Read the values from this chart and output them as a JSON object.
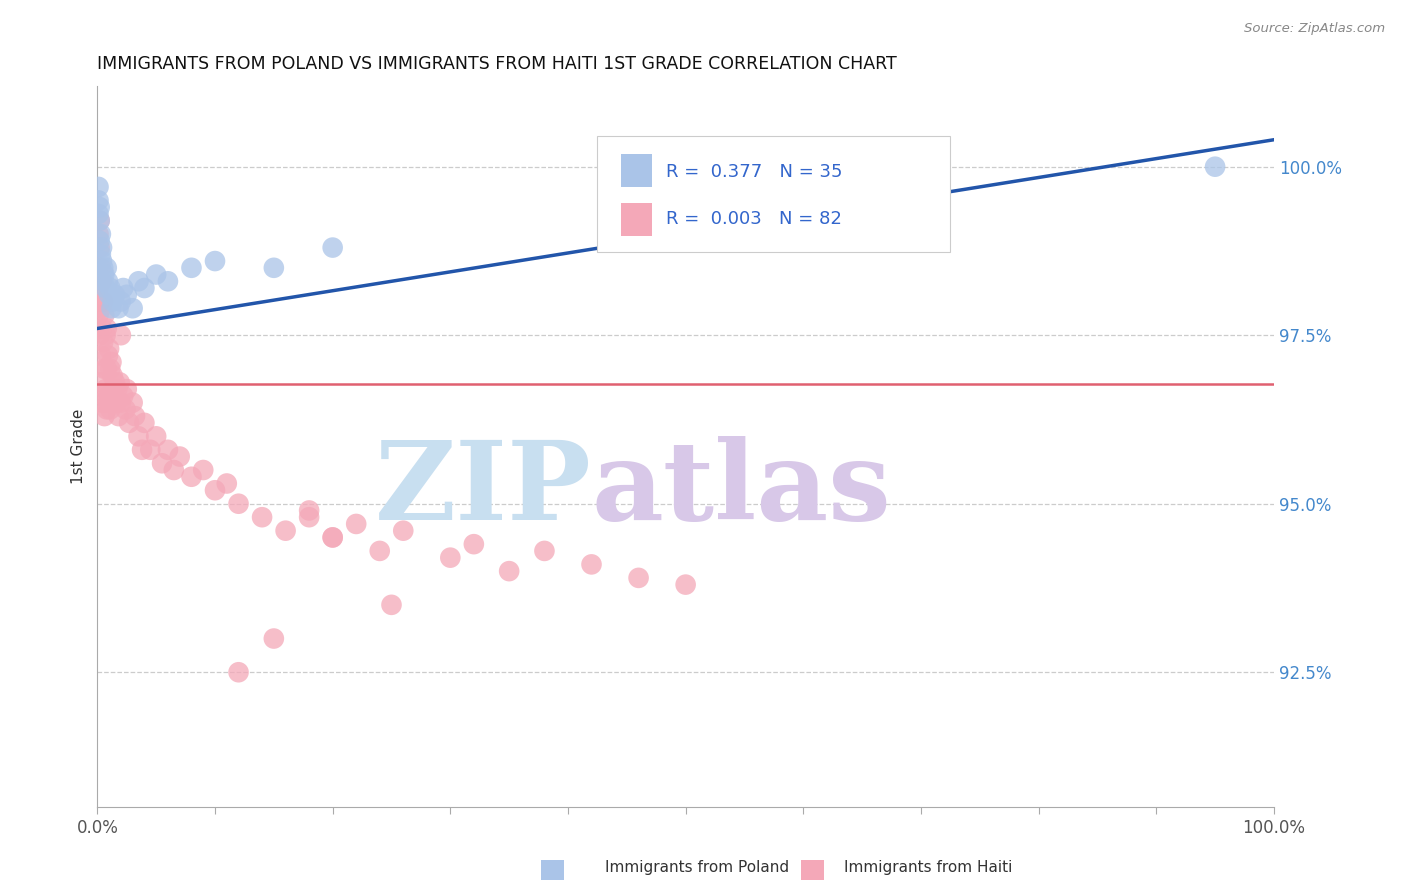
{
  "title": "IMMIGRANTS FROM POLAND VS IMMIGRANTS FROM HAITI 1ST GRADE CORRELATION CHART",
  "source": "Source: ZipAtlas.com",
  "ylabel": "1st Grade",
  "right_yticks": [
    100.0,
    97.5,
    95.0,
    92.5
  ],
  "xlim": [
    0.0,
    1.0
  ],
  "ylim": [
    90.5,
    101.2
  ],
  "poland_R": 0.377,
  "poland_N": 35,
  "haiti_R": 0.003,
  "haiti_N": 82,
  "poland_color": "#aac4e8",
  "haiti_color": "#f4a8b8",
  "poland_line_color": "#2255aa",
  "haiti_line_color": "#e06070",
  "watermark_zip_color": "#c8dff0",
  "watermark_atlas_color": "#d8c8e8",
  "legend_R_color": "#3366cc",
  "poland_trend_x": [
    0.0,
    1.0
  ],
  "poland_trend_y": [
    97.6,
    100.4
  ],
  "haiti_trend_y": 96.78,
  "poland_scatter_x": [
    0.001,
    0.001,
    0.001,
    0.002,
    0.002,
    0.002,
    0.003,
    0.003,
    0.004,
    0.004,
    0.005,
    0.005,
    0.006,
    0.007,
    0.008,
    0.009,
    0.01,
    0.011,
    0.012,
    0.013,
    0.015,
    0.018,
    0.02,
    0.022,
    0.025,
    0.03,
    0.035,
    0.04,
    0.05,
    0.06,
    0.08,
    0.1,
    0.15,
    0.2,
    0.95
  ],
  "poland_scatter_y": [
    99.3,
    99.5,
    99.7,
    99.2,
    99.4,
    98.9,
    99.0,
    98.7,
    98.8,
    98.6,
    98.5,
    98.3,
    98.4,
    98.2,
    98.5,
    98.3,
    98.1,
    98.2,
    97.9,
    98.0,
    98.1,
    97.9,
    98.0,
    98.2,
    98.1,
    97.9,
    98.3,
    98.2,
    98.4,
    98.3,
    98.5,
    98.6,
    98.5,
    98.8,
    100.0
  ],
  "haiti_scatter_x": [
    0.001,
    0.001,
    0.001,
    0.001,
    0.002,
    0.002,
    0.002,
    0.002,
    0.003,
    0.003,
    0.003,
    0.003,
    0.004,
    0.004,
    0.004,
    0.005,
    0.005,
    0.005,
    0.006,
    0.006,
    0.006,
    0.007,
    0.007,
    0.008,
    0.008,
    0.008,
    0.009,
    0.009,
    0.01,
    0.01,
    0.011,
    0.011,
    0.012,
    0.012,
    0.013,
    0.014,
    0.015,
    0.016,
    0.017,
    0.018,
    0.019,
    0.02,
    0.022,
    0.024,
    0.025,
    0.027,
    0.03,
    0.032,
    0.035,
    0.038,
    0.04,
    0.045,
    0.05,
    0.055,
    0.06,
    0.065,
    0.07,
    0.08,
    0.09,
    0.1,
    0.11,
    0.12,
    0.14,
    0.16,
    0.18,
    0.2,
    0.22,
    0.24,
    0.26,
    0.3,
    0.32,
    0.35,
    0.38,
    0.42,
    0.46,
    0.5,
    0.18,
    0.2,
    0.25,
    0.15,
    0.02,
    0.12
  ],
  "haiti_scatter_y": [
    99.0,
    98.5,
    98.2,
    97.8,
    99.2,
    98.8,
    98.0,
    97.5,
    98.5,
    97.9,
    97.2,
    96.8,
    98.3,
    97.6,
    96.5,
    98.0,
    97.4,
    96.6,
    97.8,
    97.0,
    96.3,
    97.5,
    96.7,
    97.6,
    97.0,
    96.4,
    97.2,
    96.5,
    97.3,
    96.6,
    97.0,
    96.4,
    97.1,
    96.5,
    96.9,
    96.7,
    96.8,
    96.5,
    96.7,
    96.3,
    96.8,
    96.5,
    96.6,
    96.4,
    96.7,
    96.2,
    96.5,
    96.3,
    96.0,
    95.8,
    96.2,
    95.8,
    96.0,
    95.6,
    95.8,
    95.5,
    95.7,
    95.4,
    95.5,
    95.2,
    95.3,
    95.0,
    94.8,
    94.6,
    94.9,
    94.5,
    94.7,
    94.3,
    94.6,
    94.2,
    94.4,
    94.0,
    94.3,
    94.1,
    93.9,
    93.8,
    94.8,
    94.5,
    93.5,
    93.0,
    97.5,
    92.5
  ],
  "xtick_positions": [
    0.0,
    0.1,
    0.2,
    0.3,
    0.4,
    0.5,
    0.6,
    0.7,
    0.8,
    0.9,
    1.0
  ]
}
